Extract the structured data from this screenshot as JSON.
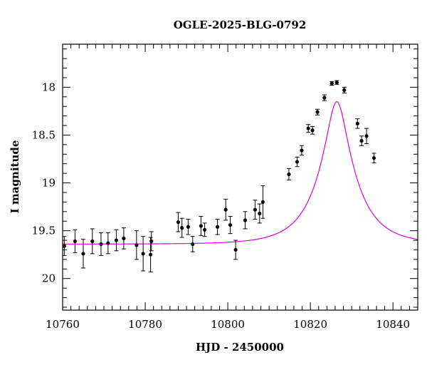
{
  "chart_data": {
    "type": "scatter",
    "title": "OGLE-2025-BLG-0792",
    "xlabel": "HJD - 2450000",
    "ylabel": "I magnitude",
    "xlim": [
      10760,
      10846
    ],
    "ylim": [
      20.33,
      17.55
    ],
    "y_inverted": true,
    "x_ticks": [
      10760,
      10780,
      10800,
      10820,
      10840
    ],
    "y_ticks": [
      18,
      18.5,
      19,
      19.5,
      20
    ],
    "y_tick_labels": [
      "18",
      "18.5",
      "19",
      "19.5",
      "20"
    ],
    "grid": false,
    "colors": {
      "model": "#e000e0",
      "points": "#000000"
    },
    "model": {
      "t0": 10826.4,
      "u0": 0.26,
      "tE": 9.0,
      "baseline": 19.64
    },
    "points": [
      {
        "x": 10760.4,
        "y": 19.66,
        "err": 0.1
      },
      {
        "x": 10763.0,
        "y": 19.61,
        "err": 0.12
      },
      {
        "x": 10765.0,
        "y": 19.74,
        "err": 0.15
      },
      {
        "x": 10767.2,
        "y": 19.61,
        "err": 0.13
      },
      {
        "x": 10769.3,
        "y": 19.64,
        "err": 0.12
      },
      {
        "x": 10771.0,
        "y": 19.63,
        "err": 0.11
      },
      {
        "x": 10773.0,
        "y": 19.6,
        "err": 0.11
      },
      {
        "x": 10774.8,
        "y": 19.58,
        "err": 0.11
      },
      {
        "x": 10777.9,
        "y": 19.65,
        "err": 0.15
      },
      {
        "x": 10779.5,
        "y": 19.74,
        "err": 0.18
      },
      {
        "x": 10781.3,
        "y": 19.75,
        "err": 0.18
      },
      {
        "x": 10781.5,
        "y": 19.61,
        "err": 0.1
      },
      {
        "x": 10788.0,
        "y": 19.41,
        "err": 0.1
      },
      {
        "x": 10788.9,
        "y": 19.47,
        "err": 0.1
      },
      {
        "x": 10790.4,
        "y": 19.46,
        "err": 0.08
      },
      {
        "x": 10791.5,
        "y": 19.64,
        "err": 0.08
      },
      {
        "x": 10793.5,
        "y": 19.45,
        "err": 0.1
      },
      {
        "x": 10794.4,
        "y": 19.49,
        "err": 0.07
      },
      {
        "x": 10797.5,
        "y": 19.46,
        "err": 0.08
      },
      {
        "x": 10799.5,
        "y": 19.28,
        "err": 0.11
      },
      {
        "x": 10800.6,
        "y": 19.44,
        "err": 0.09
      },
      {
        "x": 10801.9,
        "y": 19.7,
        "err": 0.1
      },
      {
        "x": 10804.2,
        "y": 19.39,
        "err": 0.09
      },
      {
        "x": 10806.6,
        "y": 19.28,
        "err": 0.1
      },
      {
        "x": 10807.7,
        "y": 19.32,
        "err": 0.1
      },
      {
        "x": 10808.5,
        "y": 19.2,
        "err": 0.17
      },
      {
        "x": 10814.8,
        "y": 18.91,
        "err": 0.06
      },
      {
        "x": 10816.8,
        "y": 18.78,
        "err": 0.05
      },
      {
        "x": 10817.9,
        "y": 18.66,
        "err": 0.05
      },
      {
        "x": 10819.5,
        "y": 18.43,
        "err": 0.04
      },
      {
        "x": 10820.5,
        "y": 18.45,
        "err": 0.04
      },
      {
        "x": 10821.7,
        "y": 18.26,
        "err": 0.03
      },
      {
        "x": 10823.4,
        "y": 18.11,
        "err": 0.03
      },
      {
        "x": 10825.2,
        "y": 17.96,
        "err": 0.02
      },
      {
        "x": 10826.4,
        "y": 17.95,
        "err": 0.02
      },
      {
        "x": 10828.2,
        "y": 18.03,
        "err": 0.03
      },
      {
        "x": 10831.4,
        "y": 18.38,
        "err": 0.05
      },
      {
        "x": 10832.4,
        "y": 18.56,
        "err": 0.05
      },
      {
        "x": 10833.6,
        "y": 18.51,
        "err": 0.08
      },
      {
        "x": 10835.4,
        "y": 18.74,
        "err": 0.05
      }
    ]
  }
}
